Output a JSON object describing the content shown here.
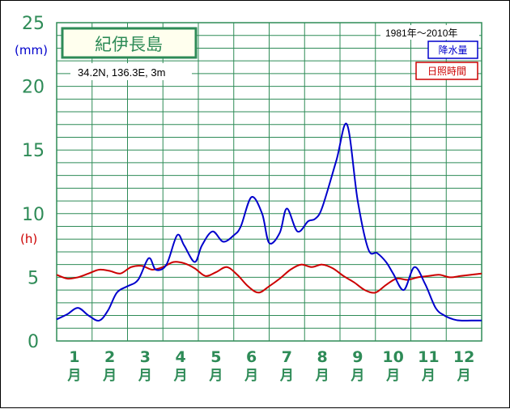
{
  "chart_data": {
    "type": "line",
    "station_name": "紀伊長島",
    "location": "34.2N, 136.3E, 3m",
    "period": "1981年〜2010年",
    "units": {
      "precip": "(mm)",
      "sunshine": "(h)"
    },
    "legend": {
      "precipitation": "降水量",
      "sunshine": "日照時間",
      "placement": "top-right"
    },
    "ylim": [
      0,
      25
    ],
    "yticks": [
      "0",
      "5",
      "10",
      "15",
      "20",
      "25"
    ],
    "x_months": [
      "1",
      "2",
      "3",
      "4",
      "5",
      "6",
      "7",
      "8",
      "9",
      "10",
      "11",
      "12"
    ],
    "month_unit": "月",
    "xlim": [
      0.5,
      12.5
    ],
    "grid": true,
    "series": [
      {
        "key": "precipitation",
        "color": "#0000cc",
        "x": [
          0.5,
          0.8,
          1.1,
          1.4,
          1.7,
          1.95,
          2.2,
          2.5,
          2.8,
          3.1,
          3.3,
          3.6,
          3.9,
          4.1,
          4.4,
          4.6,
          4.9,
          5.2,
          5.5,
          5.7,
          6.0,
          6.3,
          6.5,
          6.8,
          7.0,
          7.3,
          7.6,
          7.8,
          8.0,
          8.4,
          8.7,
          9.0,
          9.3,
          9.55,
          9.8,
          10.0,
          10.3,
          10.6,
          10.9,
          11.2,
          11.45,
          11.7,
          11.9,
          12.2,
          12.5
        ],
        "y": [
          1.7,
          2.1,
          2.6,
          2.0,
          1.6,
          2.4,
          3.8,
          4.3,
          4.8,
          6.5,
          5.6,
          6.0,
          8.3,
          7.5,
          6.2,
          7.5,
          8.6,
          7.8,
          8.3,
          9.0,
          11.3,
          10.0,
          7.7,
          8.5,
          10.4,
          8.6,
          9.4,
          9.6,
          10.5,
          14.2,
          17.0,
          11.0,
          7.2,
          6.9,
          6.2,
          5.3,
          4.0,
          5.8,
          4.5,
          2.6,
          2.0,
          1.7,
          1.6,
          1.6,
          1.6
        ],
        "note": "smoothed daily normals"
      },
      {
        "key": "sunshine",
        "color": "#cc0000",
        "x": [
          0.5,
          0.8,
          1.1,
          1.4,
          1.7,
          2.0,
          2.3,
          2.6,
          2.9,
          3.2,
          3.5,
          3.8,
          4.1,
          4.4,
          4.7,
          5.0,
          5.3,
          5.6,
          5.9,
          6.2,
          6.5,
          6.8,
          7.1,
          7.4,
          7.7,
          8.0,
          8.3,
          8.6,
          8.9,
          9.2,
          9.5,
          9.8,
          10.1,
          10.4,
          10.7,
          11.0,
          11.3,
          11.6,
          11.9,
          12.2,
          12.5
        ],
        "y": [
          5.2,
          4.9,
          5.0,
          5.3,
          5.6,
          5.5,
          5.3,
          5.8,
          5.9,
          5.6,
          5.8,
          6.2,
          6.1,
          5.7,
          5.1,
          5.4,
          5.8,
          5.2,
          4.3,
          3.8,
          4.3,
          4.9,
          5.6,
          6.0,
          5.8,
          6.0,
          5.7,
          5.1,
          4.6,
          4.0,
          3.8,
          4.4,
          4.9,
          4.8,
          5.0,
          5.1,
          5.2,
          5.0,
          5.1,
          5.2,
          5.3
        ]
      }
    ],
    "colors": {
      "grid": "#2e8b57",
      "axis_text": "#2e8b57",
      "frame": "#000000"
    }
  }
}
